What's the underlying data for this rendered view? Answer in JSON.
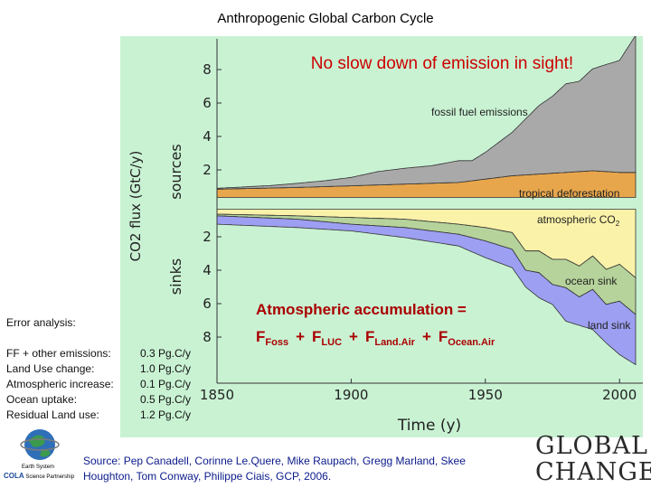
{
  "title": "Anthropogenic Global Carbon Cycle",
  "chart_data": {
    "type": "area",
    "headline": "No slow down of emission in sight!",
    "xlabel": "Time (y)",
    "ylabel": "CO2 flux (GtC/y)",
    "y_group_labels": [
      "sources",
      "sinks"
    ],
    "xlim": [
      1850,
      2006
    ],
    "ylim": [
      -9,
      9
    ],
    "x_ticks": [
      "1850",
      "1900",
      "1950",
      "2000"
    ],
    "y_ticks_sources": [
      "2",
      "4",
      "6",
      "8"
    ],
    "y_ticks_sinks": [
      "2",
      "4",
      "6",
      "8"
    ],
    "series": [
      {
        "name": "fossil fuel emissions",
        "color": "#a9a9a9",
        "x": [
          1850,
          1870,
          1890,
          1900,
          1910,
          1920,
          1930,
          1940,
          1945,
          1950,
          1960,
          1970,
          1975,
          1980,
          1985,
          1990,
          1995,
          2000,
          2006
        ],
        "values": [
          0.05,
          0.15,
          0.35,
          0.5,
          0.8,
          0.95,
          1.05,
          1.3,
          1.2,
          1.6,
          2.6,
          4.1,
          4.6,
          5.3,
          5.4,
          6.1,
          6.4,
          6.7,
          8.2
        ]
      },
      {
        "name": "tropical deforestation",
        "color": "#e8a64c",
        "x": [
          1850,
          1880,
          1900,
          1920,
          1940,
          1950,
          1960,
          1970,
          1980,
          1990,
          2000,
          2006
        ],
        "values": [
          0.5,
          0.6,
          0.7,
          0.8,
          0.9,
          1.1,
          1.3,
          1.4,
          1.5,
          1.6,
          1.5,
          1.5
        ]
      },
      {
        "name": "atmospheric CO2",
        "color": "#fbf2a9",
        "x": [
          1850,
          1880,
          1900,
          1920,
          1940,
          1950,
          1960,
          1965,
          1970,
          1975,
          1980,
          1985,
          1990,
          1995,
          2000,
          2006
        ],
        "values": [
          0.3,
          0.4,
          0.5,
          0.6,
          0.9,
          1.1,
          1.4,
          2.5,
          2.5,
          3.0,
          3.0,
          3.4,
          2.8,
          3.6,
          3.3,
          4.1
        ]
      },
      {
        "name": "ocean sink",
        "color": "#b6d39b",
        "x": [
          1850,
          1880,
          1900,
          1920,
          1940,
          1950,
          1960,
          1970,
          1980,
          1990,
          2000,
          2006
        ],
        "values": [
          0.1,
          0.2,
          0.4,
          0.5,
          0.6,
          0.8,
          1.0,
          1.3,
          1.7,
          2.0,
          2.2,
          2.2
        ]
      },
      {
        "name": "land sink",
        "color": "#9d9ff2",
        "x": [
          1850,
          1880,
          1900,
          1920,
          1940,
          1950,
          1960,
          1965,
          1970,
          1975,
          1980,
          1985,
          1990,
          1995,
          2000,
          2006
        ],
        "values": [
          0.5,
          0.5,
          0.4,
          0.6,
          0.7,
          1.0,
          1.1,
          1.0,
          1.5,
          1.2,
          2.0,
          1.7,
          2.4,
          2.3,
          3.2,
          3.0
        ]
      }
    ],
    "labels": {
      "fossil": "fossil fuel emissions",
      "deforestation": "tropical deforestation",
      "atmos": "atmospheric CO",
      "atmos_sub": "2",
      "ocean": "ocean sink",
      "land": "land sink"
    },
    "equation": {
      "line1": "Atmospheric accumulation =",
      "f": "F",
      "plus": "+",
      "foss": "Foss",
      "luc": "LUC",
      "land": "Land.Air",
      "ocean": "Ocean.Air"
    },
    "colors": {
      "panel": "#c9f2d3",
      "headline": "#cc0000",
      "equation": "#aa0000"
    }
  },
  "error_analysis": {
    "heading": "Error analysis:",
    "rows": [
      {
        "label": "FF + other emissions:",
        "value": "0.3 Pg.C/y"
      },
      {
        "label": "Land Use change:",
        "value": "1.0 Pg.C/y"
      },
      {
        "label": "Atmospheric increase:",
        "value": "0.1 Pg.C/y"
      },
      {
        "label": "Ocean uptake:",
        "value": "0.5 Pg.C/y"
      },
      {
        "label": "Residual Land use:",
        "value": "1.2 Pg.C/y"
      }
    ]
  },
  "source": {
    "line1": "Source: Pep Canadell, Corinne Le.Quere, Mike Raupach, Gregg Marland, Skee",
    "line2": "Houghton, Tom Conway, Philippe Ciais, GCP, 2006."
  },
  "logos": {
    "left_line1": "Earth System",
    "left_line2": "COLA",
    "left_line3": "Science Partnership",
    "right_line1": "GLOBAL",
    "right_line2": "CHANGE"
  }
}
